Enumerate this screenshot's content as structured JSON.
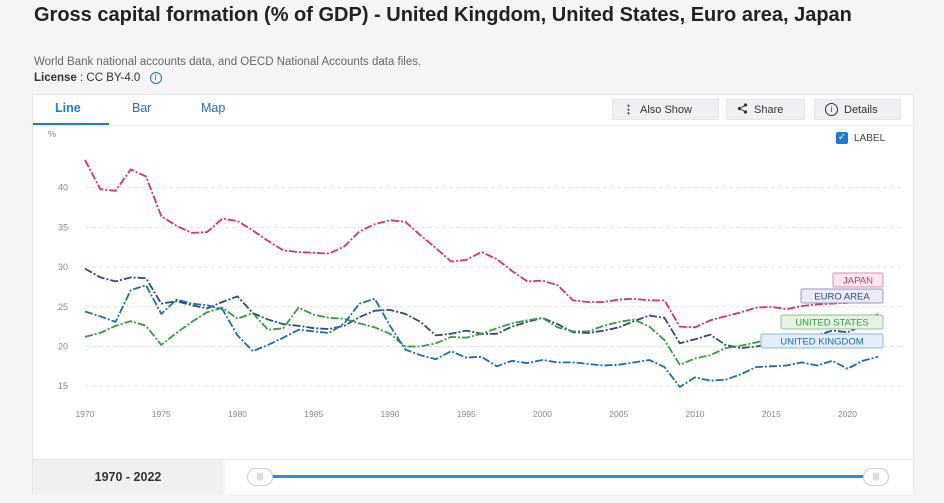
{
  "page": {
    "title": "Gross capital formation (% of GDP) - United Kingdom, United States, Euro area, Japan",
    "subtitle": "World Bank national accounts data, and OECD National Accounts data files.",
    "license_label": "License",
    "license_value": ": CC BY-4.0"
  },
  "tabs": [
    {
      "label": "Line",
      "active": true
    },
    {
      "label": "Bar",
      "active": false
    },
    {
      "label": "Map",
      "active": false
    }
  ],
  "actions": {
    "also_show": "Also Show",
    "share": "Share",
    "details": "Details"
  },
  "label_toggle": {
    "label": "LABEL",
    "checked": true
  },
  "range": {
    "label": "1970 - 2022"
  },
  "chart_data": {
    "type": "line",
    "ylabel": "%",
    "ylim": [
      12,
      46
    ],
    "xlim": [
      1970,
      2022
    ],
    "y_ticks": [
      "15",
      "20",
      "25",
      "30",
      "35",
      "40"
    ],
    "y_tick_values": [
      15,
      20,
      25,
      30,
      35,
      40
    ],
    "x_ticks": [
      "1970",
      "1975",
      "1980",
      "1985",
      "1990",
      "1995",
      "2000",
      "2005",
      "2010",
      "2015",
      "2020"
    ],
    "x_tick_values": [
      1970,
      1975,
      1980,
      1985,
      1990,
      1995,
      2000,
      2005,
      2010,
      2015,
      2020
    ],
    "grid": true,
    "x": [
      1970,
      1971,
      1972,
      1973,
      1974,
      1975,
      1976,
      1977,
      1978,
      1979,
      1980,
      1981,
      1982,
      1983,
      1984,
      1985,
      1986,
      1987,
      1988,
      1989,
      1990,
      1991,
      1992,
      1993,
      1994,
      1995,
      1996,
      1997,
      1998,
      1999,
      2000,
      2001,
      2002,
      2003,
      2004,
      2005,
      2006,
      2007,
      2008,
      2009,
      2010,
      2011,
      2012,
      2013,
      2014,
      2015,
      2016,
      2017,
      2018,
      2019,
      2020,
      2021,
      2022
    ],
    "series": [
      {
        "name": "JAPAN",
        "color": "#d6336c",
        "label_bg": "#fde8ef",
        "label_border": "#e88aa8",
        "values": [
          43.5,
          39.8,
          39.6,
          42.3,
          41.4,
          36.4,
          35.2,
          34.3,
          34.4,
          36.1,
          35.8,
          34.6,
          33.3,
          32.1,
          31.9,
          31.8,
          31.7,
          32.6,
          34.5,
          35.4,
          35.9,
          35.7,
          34.0,
          32.4,
          30.7,
          30.9,
          31.9,
          31.0,
          29.5,
          28.2,
          28.3,
          27.7,
          25.8,
          25.6,
          25.6,
          25.9,
          26.0,
          25.8,
          25.8,
          22.5,
          22.4,
          23.3,
          23.8,
          24.3,
          24.9,
          25.0,
          24.7,
          25.1,
          25.3,
          25.4,
          25.5,
          25.8,
          26.7
        ]
      },
      {
        "name": "EURO AREA",
        "color": "#2f4c7a",
        "label_bg": "#ebeaf5",
        "label_border": "#9a94c2",
        "values": [
          29.8,
          28.7,
          28.2,
          28.7,
          28.6,
          25.4,
          25.7,
          25.2,
          24.8,
          25.6,
          26.3,
          24.2,
          23.4,
          22.8,
          22.6,
          22.3,
          22.2,
          22.6,
          23.7,
          24.5,
          24.6,
          24.1,
          23.1,
          21.4,
          21.6,
          22.0,
          21.6,
          21.6,
          22.5,
          23.1,
          23.6,
          22.8,
          21.8,
          21.7,
          22.0,
          22.4,
          23.2,
          23.9,
          23.6,
          20.4,
          20.9,
          21.5,
          20.2,
          19.8,
          20.0,
          20.3,
          20.5,
          21.0,
          21.4,
          22.0,
          21.8,
          22.6,
          24.1
        ]
      },
      {
        "name": "UNITED STATES",
        "color": "#3a9a3f",
        "label_bg": "#e6f3e4",
        "label_border": "#8cc589",
        "values": [
          21.2,
          21.7,
          22.6,
          23.2,
          22.6,
          20.2,
          21.7,
          23.1,
          24.3,
          24.9,
          23.5,
          24.2,
          22.1,
          22.3,
          24.9,
          24.0,
          23.6,
          23.5,
          22.9,
          22.4,
          21.6,
          20.0,
          20.0,
          20.4,
          21.2,
          21.1,
          21.6,
          22.3,
          22.9,
          23.3,
          23.6,
          22.4,
          21.9,
          21.9,
          22.6,
          23.1,
          23.4,
          22.5,
          20.8,
          17.7,
          18.5,
          18.9,
          19.8,
          20.1,
          20.5,
          21.0,
          20.5,
          20.7,
          21.0,
          21.2,
          21.1,
          21.0,
          21.3
        ]
      },
      {
        "name": "UNITED KINGDOM",
        "color": "#1f6bb0",
        "label_bg": "#e4eef9",
        "label_border": "#8ab7e4",
        "values": [
          24.4,
          23.8,
          23.1,
          27.1,
          27.7,
          24.1,
          25.9,
          25.4,
          25.2,
          24.7,
          21.4,
          19.4,
          20.2,
          21.1,
          22.1,
          21.9,
          21.7,
          22.9,
          25.4,
          26.0,
          22.6,
          19.6,
          18.9,
          18.4,
          19.4,
          18.6,
          18.7,
          17.5,
          18.2,
          17.9,
          18.3,
          18.0,
          18.0,
          17.8,
          17.6,
          17.7,
          18.0,
          18.3,
          17.4,
          14.9,
          16.1,
          15.7,
          15.8,
          16.5,
          17.4,
          17.5,
          17.6,
          18.0,
          17.6,
          18.2,
          17.2,
          18.2,
          18.7
        ]
      }
    ]
  }
}
